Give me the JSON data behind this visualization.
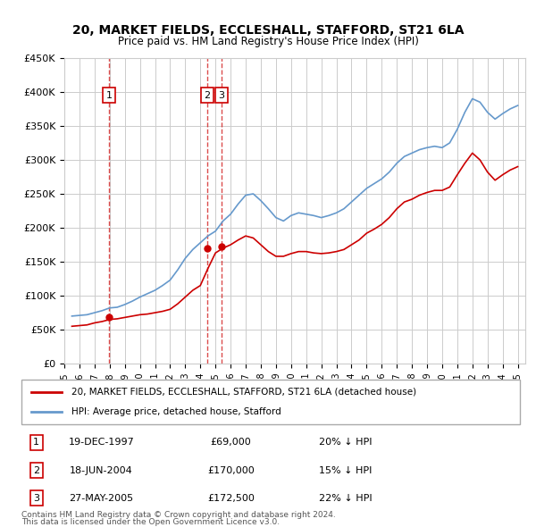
{
  "title": "20, MARKET FIELDS, ECCLESHALL, STAFFORD, ST21 6LA",
  "subtitle": "Price paid vs. HM Land Registry's House Price Index (HPI)",
  "ylabel_ticks": [
    "£0",
    "£50K",
    "£100K",
    "£150K",
    "£200K",
    "£250K",
    "£300K",
    "£350K",
    "£400K",
    "£450K"
  ],
  "ytick_vals": [
    0,
    50000,
    100000,
    150000,
    200000,
    250000,
    300000,
    350000,
    400000,
    450000
  ],
  "ylim": [
    0,
    450000
  ],
  "xlim_start": 1995.5,
  "xlim_end": 2025.5,
  "background_color": "#ffffff",
  "grid_color": "#cccccc",
  "hpi_color": "#6699cc",
  "price_color": "#cc0000",
  "dashed_color": "#cc0000",
  "purchases": [
    {
      "label": 1,
      "date": "19-DEC-1997",
      "price": 69000,
      "year": 1997.96,
      "pct": "20%",
      "dir": "↓"
    },
    {
      "label": 2,
      "date": "18-JUN-2004",
      "price": 170000,
      "year": 2004.46,
      "pct": "15%",
      "dir": "↓"
    },
    {
      "label": 3,
      "date": "27-MAY-2005",
      "price": 172500,
      "year": 2005.41,
      "pct": "22%",
      "dir": "↓"
    }
  ],
  "legend_line1": "20, MARKET FIELDS, ECCLESHALL, STAFFORD, ST21 6LA (detached house)",
  "legend_line2": "HPI: Average price, detached house, Stafford",
  "footer1": "Contains HM Land Registry data © Crown copyright and database right 2024.",
  "footer2": "This data is licensed under the Open Government Licence v3.0.",
  "hpi_data_x": [
    1995.5,
    1996,
    1996.5,
    1997,
    1997.5,
    1998,
    1998.5,
    1999,
    1999.5,
    2000,
    2000.5,
    2001,
    2001.5,
    2002,
    2002.5,
    2003,
    2003.5,
    2004,
    2004.5,
    2005,
    2005.5,
    2006,
    2006.5,
    2007,
    2007.5,
    2008,
    2008.5,
    2009,
    2009.5,
    2010,
    2010.5,
    2011,
    2011.5,
    2012,
    2012.5,
    2013,
    2013.5,
    2014,
    2014.5,
    2015,
    2015.5,
    2016,
    2016.5,
    2017,
    2017.5,
    2018,
    2018.5,
    2019,
    2019.5,
    2020,
    2020.5,
    2021,
    2021.5,
    2022,
    2022.5,
    2023,
    2023.5,
    2024,
    2024.5,
    2025
  ],
  "hpi_data_y": [
    70000,
    71000,
    72000,
    75000,
    78000,
    82000,
    83000,
    87000,
    92000,
    98000,
    103000,
    108000,
    115000,
    123000,
    138000,
    155000,
    168000,
    178000,
    188000,
    195000,
    210000,
    220000,
    235000,
    248000,
    250000,
    240000,
    228000,
    215000,
    210000,
    218000,
    222000,
    220000,
    218000,
    215000,
    218000,
    222000,
    228000,
    238000,
    248000,
    258000,
    265000,
    272000,
    282000,
    295000,
    305000,
    310000,
    315000,
    318000,
    320000,
    318000,
    325000,
    345000,
    370000,
    390000,
    385000,
    370000,
    360000,
    368000,
    375000,
    380000
  ],
  "price_data_x": [
    1995.5,
    1996,
    1996.5,
    1997,
    1997.5,
    1998,
    1998.5,
    1999,
    1999.5,
    2000,
    2000.5,
    2001,
    2001.5,
    2002,
    2002.5,
    2003,
    2003.5,
    2004,
    2004.5,
    2005,
    2005.5,
    2006,
    2006.5,
    2007,
    2007.5,
    2008,
    2008.5,
    2009,
    2009.5,
    2010,
    2010.5,
    2011,
    2011.5,
    2012,
    2012.5,
    2013,
    2013.5,
    2014,
    2014.5,
    2015,
    2015.5,
    2016,
    2016.5,
    2017,
    2017.5,
    2018,
    2018.5,
    2019,
    2019.5,
    2020,
    2020.5,
    2021,
    2021.5,
    2022,
    2022.5,
    2023,
    2023.5,
    2024,
    2024.5,
    2025
  ],
  "price_data_y": [
    55000,
    56000,
    57000,
    60000,
    62000,
    65000,
    66000,
    68000,
    70000,
    72000,
    73000,
    75000,
    77000,
    80000,
    88000,
    98000,
    108000,
    115000,
    140000,
    163000,
    170000,
    175000,
    182000,
    188000,
    185000,
    175000,
    165000,
    158000,
    158000,
    162000,
    165000,
    165000,
    163000,
    162000,
    163000,
    165000,
    168000,
    175000,
    182000,
    192000,
    198000,
    205000,
    215000,
    228000,
    238000,
    242000,
    248000,
    252000,
    255000,
    255000,
    260000,
    278000,
    295000,
    310000,
    300000,
    282000,
    270000,
    278000,
    285000,
    290000
  ]
}
